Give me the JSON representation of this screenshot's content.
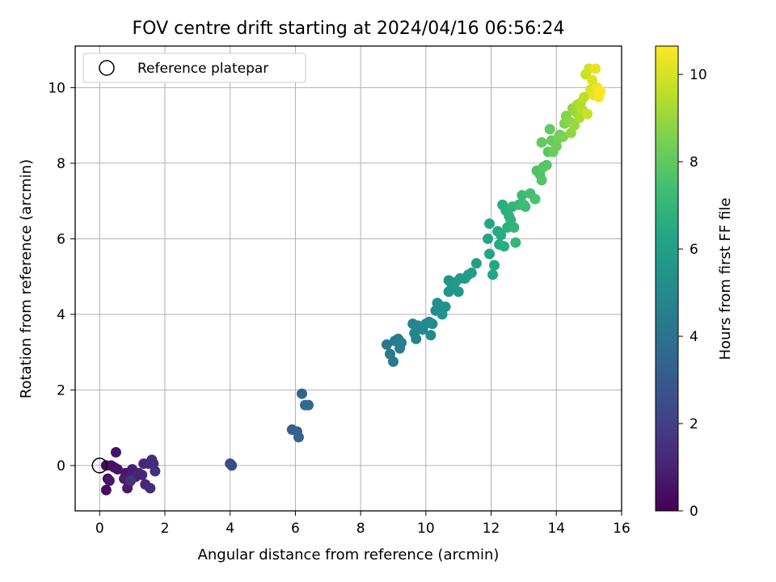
{
  "chart_data": {
    "type": "scatter",
    "title": "FOV centre drift starting at 2024/04/16 06:56:24",
    "xlabel": "Angular distance from reference (arcmin)",
    "ylabel": "Rotation from reference (arcmin)",
    "xlim": [
      -0.75,
      16
    ],
    "ylim": [
      -1.2,
      11.1
    ],
    "xticks": [
      0,
      2,
      4,
      6,
      8,
      10,
      12,
      14,
      16
    ],
    "yticks": [
      0,
      2,
      4,
      6,
      8,
      10
    ],
    "grid": true,
    "legend": {
      "position": "top-left",
      "entries": [
        "Reference platepar"
      ]
    },
    "reference_point": {
      "x": 0,
      "y": 0
    },
    "colorbar": {
      "label": "Hours from first FF file",
      "min": 0,
      "max": 10.65,
      "ticks": [
        0,
        2,
        4,
        6,
        8,
        10
      ],
      "colormap": "viridis"
    },
    "points": [
      [
        0.2,
        0.0,
        0.3
      ],
      [
        0.25,
        -0.35,
        0.35
      ],
      [
        0.2,
        -0.65,
        0.4
      ],
      [
        0.35,
        0.0,
        0.45
      ],
      [
        0.45,
        -0.05,
        0.5
      ],
      [
        0.5,
        0.35,
        0.55
      ],
      [
        0.55,
        -0.1,
        0.6
      ],
      [
        0.3,
        -0.4,
        0.65
      ],
      [
        0.8,
        -0.2,
        0.7
      ],
      [
        0.85,
        -0.6,
        0.75
      ],
      [
        0.9,
        -0.45,
        0.8
      ],
      [
        0.75,
        -0.35,
        0.85
      ],
      [
        1.0,
        -0.25,
        0.9
      ],
      [
        1.0,
        -0.1,
        0.95
      ],
      [
        1.1,
        -0.3,
        1.0
      ],
      [
        1.2,
        -0.2,
        1.05
      ],
      [
        1.3,
        -0.25,
        1.1
      ],
      [
        1.35,
        0.05,
        1.15
      ],
      [
        1.4,
        -0.5,
        1.2
      ],
      [
        1.5,
        0.05,
        1.25
      ],
      [
        1.55,
        -0.6,
        1.3
      ],
      [
        1.6,
        0.15,
        1.35
      ],
      [
        1.65,
        0.05,
        1.4
      ],
      [
        1.7,
        -0.15,
        1.45
      ],
      [
        0.95,
        -0.4,
        1.5
      ],
      [
        4.0,
        0.05,
        2.3
      ],
      [
        4.05,
        0.0,
        2.4
      ],
      [
        5.9,
        0.95,
        3.2
      ],
      [
        6.05,
        0.9,
        3.3
      ],
      [
        6.1,
        0.75,
        3.4
      ],
      [
        6.2,
        1.9,
        3.5
      ],
      [
        6.3,
        1.6,
        3.6
      ],
      [
        6.4,
        1.6,
        3.7
      ],
      [
        8.8,
        3.2,
        4.2
      ],
      [
        8.9,
        2.95,
        4.3
      ],
      [
        9.0,
        2.75,
        4.35
      ],
      [
        9.05,
        3.3,
        4.4
      ],
      [
        9.15,
        3.35,
        4.45
      ],
      [
        9.2,
        3.1,
        4.5
      ],
      [
        9.25,
        3.25,
        4.55
      ],
      [
        9.6,
        3.75,
        4.7
      ],
      [
        9.65,
        3.5,
        4.75
      ],
      [
        9.7,
        3.35,
        4.8
      ],
      [
        9.75,
        3.7,
        4.85
      ],
      [
        9.9,
        3.6,
        4.9
      ],
      [
        10.0,
        3.75,
        4.95
      ],
      [
        10.1,
        3.8,
        5.0
      ],
      [
        10.15,
        3.45,
        5.05
      ],
      [
        10.2,
        3.75,
        5.1
      ],
      [
        10.3,
        4.1,
        5.2
      ],
      [
        10.35,
        4.3,
        5.25
      ],
      [
        10.4,
        4.25,
        5.3
      ],
      [
        10.5,
        4.0,
        5.35
      ],
      [
        10.6,
        4.2,
        5.4
      ],
      [
        10.7,
        4.6,
        5.5
      ],
      [
        10.7,
        4.9,
        5.55
      ],
      [
        10.8,
        4.75,
        5.6
      ],
      [
        10.9,
        4.85,
        5.65
      ],
      [
        11.0,
        4.6,
        5.7
      ],
      [
        11.05,
        4.95,
        5.75
      ],
      [
        11.2,
        4.95,
        5.8
      ],
      [
        11.3,
        5.05,
        5.85
      ],
      [
        11.4,
        5.1,
        5.9
      ],
      [
        11.55,
        5.35,
        6.0
      ],
      [
        11.9,
        6.0,
        6.2
      ],
      [
        11.95,
        5.6,
        6.25
      ],
      [
        11.95,
        6.4,
        6.3
      ],
      [
        12.05,
        5.05,
        6.35
      ],
      [
        12.1,
        5.3,
        6.4
      ],
      [
        12.2,
        6.2,
        6.45
      ],
      [
        12.25,
        5.85,
        6.5
      ],
      [
        12.3,
        6.1,
        6.55
      ],
      [
        12.35,
        6.9,
        6.6
      ],
      [
        12.4,
        5.8,
        6.65
      ],
      [
        12.45,
        6.75,
        6.7
      ],
      [
        12.5,
        6.3,
        6.75
      ],
      [
        12.55,
        6.6,
        6.8
      ],
      [
        12.6,
        6.5,
        6.85
      ],
      [
        12.65,
        6.85,
        6.9
      ],
      [
        12.7,
        6.3,
        6.95
      ],
      [
        12.75,
        5.9,
        7.0
      ],
      [
        12.85,
        6.9,
        7.1
      ],
      [
        12.95,
        7.15,
        7.2
      ],
      [
        13.0,
        6.9,
        7.3
      ],
      [
        13.05,
        6.85,
        7.35
      ],
      [
        13.2,
        7.2,
        7.45
      ],
      [
        13.35,
        7.05,
        7.6
      ],
      [
        13.4,
        7.8,
        7.65
      ],
      [
        13.5,
        7.7,
        7.7
      ],
      [
        13.55,
        7.55,
        7.75
      ],
      [
        13.6,
        7.9,
        7.8
      ],
      [
        13.7,
        7.95,
        7.85
      ],
      [
        13.75,
        8.3,
        7.9
      ],
      [
        13.55,
        8.55,
        8.0
      ],
      [
        13.8,
        8.9,
        8.1
      ],
      [
        13.85,
        8.6,
        8.15
      ],
      [
        13.9,
        8.3,
        8.2
      ],
      [
        14.0,
        8.45,
        8.3
      ],
      [
        14.05,
        8.65,
        8.35
      ],
      [
        14.1,
        8.75,
        8.4
      ],
      [
        14.2,
        8.7,
        8.5
      ],
      [
        14.25,
        9.05,
        8.6
      ],
      [
        14.3,
        9.25,
        8.7
      ],
      [
        14.4,
        9.1,
        8.8
      ],
      [
        14.45,
        8.8,
        8.85
      ],
      [
        14.5,
        9.45,
        8.9
      ],
      [
        14.55,
        9.0,
        9.0
      ],
      [
        14.6,
        9.35,
        9.1
      ],
      [
        14.65,
        9.55,
        9.2
      ],
      [
        14.7,
        9.2,
        9.3
      ],
      [
        14.75,
        9.6,
        9.4
      ],
      [
        14.8,
        9.4,
        9.5
      ],
      [
        14.85,
        9.75,
        9.6
      ],
      [
        14.9,
        10.35,
        9.7
      ],
      [
        14.95,
        9.3,
        9.8
      ],
      [
        15.0,
        10.5,
        9.9
      ],
      [
        15.05,
        9.95,
        10.0
      ],
      [
        15.1,
        10.2,
        10.1
      ],
      [
        15.15,
        9.8,
        10.2
      ],
      [
        15.2,
        10.5,
        10.3
      ],
      [
        15.25,
        10.0,
        10.4
      ],
      [
        15.3,
        9.75,
        10.5
      ],
      [
        15.35,
        9.9,
        10.6
      ]
    ]
  }
}
